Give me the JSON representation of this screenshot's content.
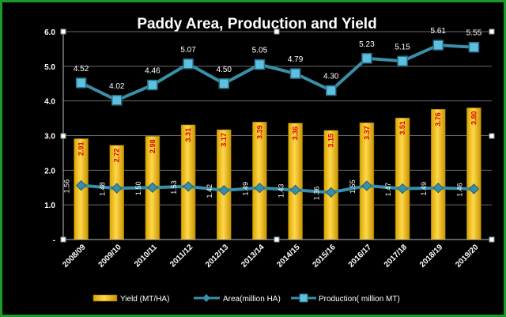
{
  "chart_data": {
    "type": "bar",
    "title": "Paddy Area, Production and Yield",
    "categories": [
      "2008/09",
      "2009/10",
      "2010/11",
      "2011/12",
      "2012/13",
      "2013/14",
      "2014/15",
      "2015/16",
      "2016/17",
      "2017/18",
      "2018/19",
      "2019/20"
    ],
    "series": [
      {
        "name": "Yield (MT/HA)",
        "type": "bar",
        "color": "#f2c200",
        "label_color": "#e00000",
        "values": [
          2.91,
          2.72,
          2.98,
          3.31,
          3.17,
          3.39,
          3.36,
          3.15,
          3.37,
          3.51,
          3.76,
          3.8
        ],
        "labels": [
          "2.91",
          "2.72",
          "2.98",
          "3.31",
          "3.17",
          "3.39",
          "3.36",
          "3.15",
          "3.37",
          "3.51",
          "3.76",
          "3.80"
        ]
      },
      {
        "name": "Area(million HA)",
        "type": "line",
        "marker": "diamond",
        "color": "#3a8fa8",
        "values": [
          1.56,
          1.48,
          1.5,
          1.53,
          1.42,
          1.49,
          1.43,
          1.36,
          1.55,
          1.47,
          1.49,
          1.46
        ],
        "labels": [
          "1.56",
          "1.48",
          "1.50",
          "1.53",
          "1.42",
          "1.49",
          "1.43",
          "1.36",
          "1.55",
          "1.47",
          "1.49",
          "1.46"
        ]
      },
      {
        "name": "Production( million MT)",
        "type": "line",
        "marker": "square",
        "color": "#3a8fa8",
        "marker_color": "#5cc0e0",
        "values": [
          4.52,
          4.02,
          4.46,
          5.07,
          4.5,
          5.05,
          4.79,
          4.3,
          5.23,
          5.15,
          5.61,
          5.55
        ],
        "labels": [
          "4.52",
          "4.02",
          "4.46",
          "5.07",
          "4.50",
          "5.05",
          "4.79",
          "4.30",
          "5.23",
          "5.15",
          "5.61",
          "5.55"
        ]
      }
    ],
    "yticks": [
      "6.0",
      "5.0",
      "4.0",
      "3.0",
      "2.0",
      "1.0",
      "-"
    ],
    "ylim": [
      0,
      6
    ],
    "grid": true,
    "legend": "bottom"
  }
}
